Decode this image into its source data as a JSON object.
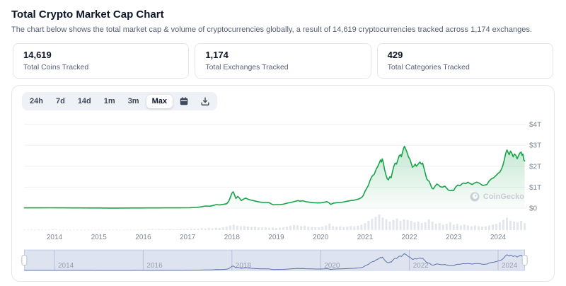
{
  "header": {
    "title": "Total Crypto Market Cap Chart",
    "subtitle": "The chart below shows the total market cap & volume of cryptocurrencies globally, a result of 14,619 cryptocurrencies tracked across 1,174 exchanges."
  },
  "stats": [
    {
      "value": "14,619",
      "label": "Total Coins Tracked"
    },
    {
      "value": "1,174",
      "label": "Total Exchanges Tracked"
    },
    {
      "value": "429",
      "label": "Total Categories Tracked"
    }
  ],
  "toolbar": {
    "ranges": [
      "24h",
      "7d",
      "14d",
      "1m",
      "3m",
      "Max"
    ],
    "active_range": "Max",
    "calendar_icon": "calendar-icon",
    "download_icon": "download-icon"
  },
  "watermark": "CoinGecko",
  "colors": {
    "line_green": "#16a34a",
    "fill_green": "rgba(22,163,74,0.22)",
    "volume_gray": "#e3e7eb",
    "grid": "#eef0f3",
    "axis_text": "#7c8694",
    "navigator_fill": "rgba(123,144,196,0.25)",
    "navigator_line": "#5e73a9",
    "navigator_label": "#97a0ae",
    "card_border": "#e3e7ed"
  },
  "chart_data": {
    "type": "area",
    "title": "Total Crypto Market Cap",
    "ylabel": "Market cap",
    "unit": "trillion USD",
    "ylim": [
      0,
      4
    ],
    "y_ticks": [
      {
        "v": 0,
        "label": "$0"
      },
      {
        "v": 1,
        "label": "$1T"
      },
      {
        "v": 2,
        "label": "$2T"
      },
      {
        "v": 3,
        "label": "$3T"
      },
      {
        "v": 4,
        "label": "$4T"
      }
    ],
    "x_ticks": [
      2014,
      2015,
      2016,
      2017,
      2018,
      2019,
      2020,
      2021,
      2022,
      2023,
      2024
    ],
    "x_range": [
      2013.32,
      2024.6
    ],
    "legend": "none",
    "grid": "horizontal",
    "series": [
      {
        "name": "Market Cap",
        "points": [
          [
            2013.32,
            0.015
          ],
          [
            2013.5,
            0.012
          ],
          [
            2013.7,
            0.013
          ],
          [
            2013.9,
            0.016
          ],
          [
            2014.05,
            0.014
          ],
          [
            2014.2,
            0.012
          ],
          [
            2014.4,
            0.011
          ],
          [
            2014.6,
            0.009
          ],
          [
            2014.8,
            0.008
          ],
          [
            2015.0,
            0.006
          ],
          [
            2015.2,
            0.005
          ],
          [
            2015.45,
            0.005
          ],
          [
            2015.7,
            0.006
          ],
          [
            2015.9,
            0.007
          ],
          [
            2016.1,
            0.009
          ],
          [
            2016.3,
            0.011
          ],
          [
            2016.5,
            0.013
          ],
          [
            2016.7,
            0.014
          ],
          [
            2016.9,
            0.016
          ],
          [
            2017.05,
            0.02
          ],
          [
            2017.2,
            0.035
          ],
          [
            2017.3,
            0.06
          ],
          [
            2017.4,
            0.1
          ],
          [
            2017.5,
            0.09
          ],
          [
            2017.58,
            0.13
          ],
          [
            2017.65,
            0.17
          ],
          [
            2017.72,
            0.15
          ],
          [
            2017.8,
            0.18
          ],
          [
            2017.88,
            0.21
          ],
          [
            2017.93,
            0.33
          ],
          [
            2017.97,
            0.55
          ],
          [
            2018.0,
            0.72
          ],
          [
            2018.03,
            0.78
          ],
          [
            2018.06,
            0.62
          ],
          [
            2018.09,
            0.46
          ],
          [
            2018.13,
            0.56
          ],
          [
            2018.17,
            0.48
          ],
          [
            2018.21,
            0.36
          ],
          [
            2018.26,
            0.43
          ],
          [
            2018.31,
            0.48
          ],
          [
            2018.36,
            0.43
          ],
          [
            2018.42,
            0.39
          ],
          [
            2018.48,
            0.36
          ],
          [
            2018.54,
            0.33
          ],
          [
            2018.6,
            0.3
          ],
          [
            2018.66,
            0.28
          ],
          [
            2018.72,
            0.27
          ],
          [
            2018.78,
            0.27
          ],
          [
            2018.84,
            0.26
          ],
          [
            2018.88,
            0.21
          ],
          [
            2018.93,
            0.16
          ],
          [
            2019.0,
            0.17
          ],
          [
            2019.08,
            0.17
          ],
          [
            2019.16,
            0.19
          ],
          [
            2019.25,
            0.24
          ],
          [
            2019.33,
            0.27
          ],
          [
            2019.42,
            0.32
          ],
          [
            2019.49,
            0.36
          ],
          [
            2019.54,
            0.33
          ],
          [
            2019.6,
            0.35
          ],
          [
            2019.68,
            0.3
          ],
          [
            2019.76,
            0.28
          ],
          [
            2019.84,
            0.26
          ],
          [
            2019.92,
            0.25
          ],
          [
            2020.0,
            0.25
          ],
          [
            2020.08,
            0.28
          ],
          [
            2020.14,
            0.31
          ],
          [
            2020.19,
            0.25
          ],
          [
            2020.23,
            0.18
          ],
          [
            2020.29,
            0.24
          ],
          [
            2020.37,
            0.26
          ],
          [
            2020.45,
            0.27
          ],
          [
            2020.53,
            0.3
          ],
          [
            2020.6,
            0.33
          ],
          [
            2020.68,
            0.36
          ],
          [
            2020.75,
            0.38
          ],
          [
            2020.81,
            0.41
          ],
          [
            2020.87,
            0.45
          ],
          [
            2020.92,
            0.5
          ],
          [
            2020.96,
            0.6
          ],
          [
            2021.0,
            0.8
          ],
          [
            2021.04,
            0.95
          ],
          [
            2021.08,
            1.1
          ],
          [
            2021.11,
            1.3
          ],
          [
            2021.14,
            1.45
          ],
          [
            2021.17,
            1.55
          ],
          [
            2021.21,
            1.62
          ],
          [
            2021.25,
            1.85
          ],
          [
            2021.29,
            2.0
          ],
          [
            2021.32,
            2.15
          ],
          [
            2021.35,
            2.3
          ],
          [
            2021.37,
            2.2
          ],
          [
            2021.39,
            2.35
          ],
          [
            2021.41,
            2.2
          ],
          [
            2021.44,
            1.85
          ],
          [
            2021.47,
            1.6
          ],
          [
            2021.5,
            1.4
          ],
          [
            2021.53,
            1.35
          ],
          [
            2021.56,
            1.5
          ],
          [
            2021.59,
            1.45
          ],
          [
            2021.62,
            1.75
          ],
          [
            2021.65,
            2.0
          ],
          [
            2021.68,
            2.15
          ],
          [
            2021.71,
            2.1
          ],
          [
            2021.74,
            2.3
          ],
          [
            2021.77,
            2.5
          ],
          [
            2021.8,
            2.55
          ],
          [
            2021.82,
            2.45
          ],
          [
            2021.85,
            2.7
          ],
          [
            2021.87,
            2.85
          ],
          [
            2021.89,
            2.95
          ],
          [
            2021.92,
            2.8
          ],
          [
            2021.95,
            2.65
          ],
          [
            2021.98,
            2.45
          ],
          [
            2022.01,
            2.35
          ],
          [
            2022.04,
            2.15
          ],
          [
            2022.07,
            1.95
          ],
          [
            2022.1,
            2.0
          ],
          [
            2022.13,
            2.1
          ],
          [
            2022.16,
            2.0
          ],
          [
            2022.2,
            2.1
          ],
          [
            2022.24,
            2.2
          ],
          [
            2022.27,
            2.1
          ],
          [
            2022.3,
            2.15
          ],
          [
            2022.33,
            1.9
          ],
          [
            2022.36,
            1.65
          ],
          [
            2022.39,
            1.4
          ],
          [
            2022.42,
            1.32
          ],
          [
            2022.45,
            1.27
          ],
          [
            2022.48,
            1.1
          ],
          [
            2022.51,
            0.95
          ],
          [
            2022.54,
            0.92
          ],
          [
            2022.58,
            1.05
          ],
          [
            2022.62,
            1.15
          ],
          [
            2022.66,
            1.1
          ],
          [
            2022.7,
            1.02
          ],
          [
            2022.75,
            1.0
          ],
          [
            2022.8,
            1.05
          ],
          [
            2022.84,
            0.95
          ],
          [
            2022.88,
            0.86
          ],
          [
            2022.92,
            0.83
          ],
          [
            2022.96,
            0.85
          ],
          [
            2023.0,
            0.84
          ],
          [
            2023.04,
            1.0
          ],
          [
            2023.09,
            1.1
          ],
          [
            2023.14,
            1.07
          ],
          [
            2023.18,
            1.15
          ],
          [
            2023.22,
            1.2
          ],
          [
            2023.27,
            1.17
          ],
          [
            2023.32,
            1.24
          ],
          [
            2023.37,
            1.17
          ],
          [
            2023.42,
            1.13
          ],
          [
            2023.47,
            1.2
          ],
          [
            2023.52,
            1.24
          ],
          [
            2023.57,
            1.2
          ],
          [
            2023.61,
            1.15
          ],
          [
            2023.65,
            1.08
          ],
          [
            2023.7,
            1.1
          ],
          [
            2023.75,
            1.13
          ],
          [
            2023.8,
            1.3
          ],
          [
            2023.85,
            1.4
          ],
          [
            2023.9,
            1.45
          ],
          [
            2023.95,
            1.55
          ],
          [
            2024.0,
            1.66
          ],
          [
            2024.04,
            1.72
          ],
          [
            2024.08,
            1.88
          ],
          [
            2024.11,
            2.05
          ],
          [
            2024.14,
            2.3
          ],
          [
            2024.17,
            2.6
          ],
          [
            2024.2,
            2.78
          ],
          [
            2024.22,
            2.68
          ],
          [
            2024.25,
            2.55
          ],
          [
            2024.28,
            2.72
          ],
          [
            2024.31,
            2.62
          ],
          [
            2024.34,
            2.45
          ],
          [
            2024.37,
            2.58
          ],
          [
            2024.4,
            2.52
          ],
          [
            2024.43,
            2.35
          ],
          [
            2024.46,
            2.5
          ],
          [
            2024.49,
            2.62
          ],
          [
            2024.52,
            2.68
          ],
          [
            2024.54,
            2.52
          ],
          [
            2024.56,
            2.58
          ],
          [
            2024.58,
            2.3
          ],
          [
            2024.6,
            2.25
          ]
        ]
      }
    ],
    "volume": {
      "name": "Volume",
      "start": 2013.32,
      "step": 0.08,
      "values": [
        0.03,
        0.02,
        0.03,
        0.02,
        0.04,
        0.03,
        0.02,
        0.03,
        0.05,
        0.04,
        0.03,
        0.02,
        0.03,
        0.02,
        0.02,
        0.03,
        0.02,
        0.02,
        0.03,
        0.02,
        0.02,
        0.03,
        0.02,
        0.02,
        0.03,
        0.02,
        0.03,
        0.02,
        0.02,
        0.03,
        0.02,
        0.03,
        0.03,
        0.04,
        0.03,
        0.04,
        0.03,
        0.04,
        0.05,
        0.04,
        0.04,
        0.05,
        0.04,
        0.05,
        0.06,
        0.05,
        0.06,
        0.08,
        0.1,
        0.09,
        0.12,
        0.1,
        0.14,
        0.12,
        0.16,
        0.14,
        0.18,
        0.22,
        0.3,
        0.34,
        0.28,
        0.24,
        0.26,
        0.22,
        0.2,
        0.22,
        0.18,
        0.16,
        0.18,
        0.15,
        0.17,
        0.14,
        0.16,
        0.18,
        0.22,
        0.28,
        0.33,
        0.3,
        0.26,
        0.28,
        0.22,
        0.2,
        0.18,
        0.18,
        0.22,
        0.3,
        0.42,
        0.26,
        0.22,
        0.24,
        0.2,
        0.22,
        0.26,
        0.24,
        0.28,
        0.34,
        0.44,
        0.6,
        0.72,
        0.85,
        1.0,
        0.8,
        0.7,
        0.55,
        0.65,
        0.75,
        0.6,
        0.7,
        0.65,
        0.6,
        0.5,
        0.55,
        0.45,
        0.5,
        0.7,
        0.55,
        0.4,
        0.45,
        0.35,
        0.4,
        0.5,
        0.35,
        0.4,
        0.3,
        0.35,
        0.3,
        0.25,
        0.3,
        0.25,
        0.22,
        0.25,
        0.3,
        0.35,
        0.4,
        0.5,
        0.65,
        0.8,
        0.6,
        0.55,
        0.5,
        0.6,
        0.45
      ]
    },
    "navigator": {
      "labels": [
        2014,
        2016,
        2018,
        2020,
        2022,
        2024
      ],
      "selected_range": "full"
    }
  }
}
